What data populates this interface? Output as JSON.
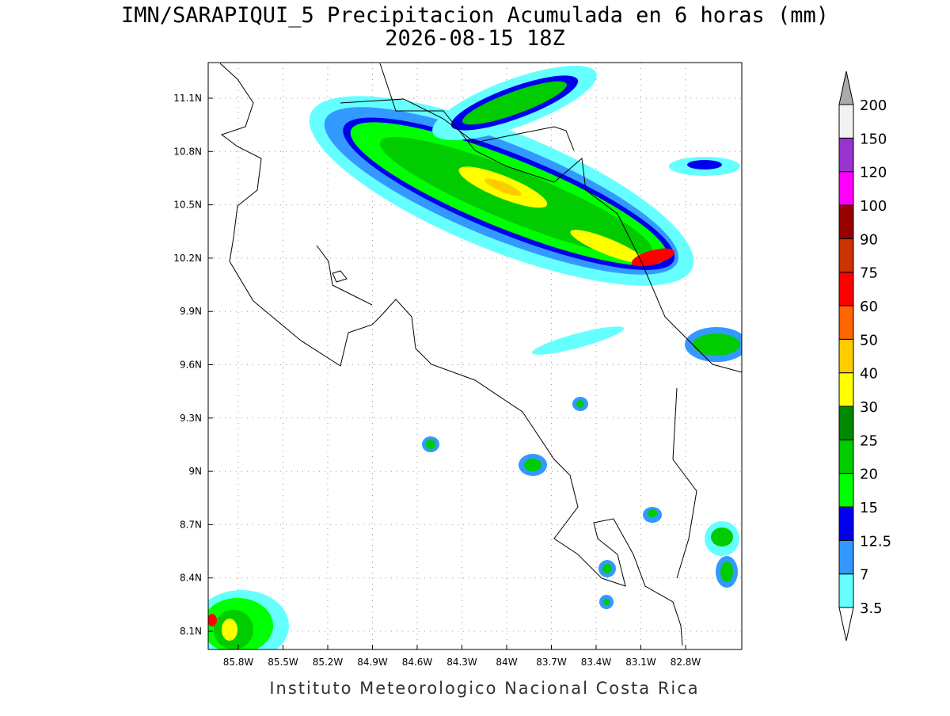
{
  "header": {
    "title": "IMN/SARAPIQUI_5 Precipitacion Acumulada en 6 horas (mm)",
    "subtitle": "2026-08-15 18Z"
  },
  "map": {
    "lon_labels": [
      "85.8W",
      "85.5W",
      "85.2W",
      "84.9W",
      "84.6W",
      "84.3W",
      "84W",
      "83.7W",
      "83.4W",
      "83.1W",
      "82.8W"
    ],
    "lat_labels": [
      "11.1N",
      "10.8N",
      "10.5N",
      "10.2N",
      "9.9N",
      "9.6N",
      "9.3N",
      "9N",
      "8.7N",
      "8.4N",
      "8.1N"
    ]
  },
  "colorbar": {
    "levels": [
      3.5,
      7,
      12.5,
      15,
      20,
      25,
      30,
      40,
      50,
      60,
      75,
      90,
      100,
      120,
      150,
      200
    ],
    "colors": [
      "#66ffff",
      "#3399ff",
      "#0000ee",
      "#00ff00",
      "#00cc00",
      "#008800",
      "#ffff00",
      "#ffcc00",
      "#ff6600",
      "#ff0000",
      "#cc3300",
      "#990000",
      "#ff00ff",
      "#9933cc",
      "#f2f2f2"
    ],
    "below_color": "#ffffff",
    "above_color": "#aaaaaa"
  },
  "footer": "Instituto Meteorologico Nacional Costa Rica"
}
